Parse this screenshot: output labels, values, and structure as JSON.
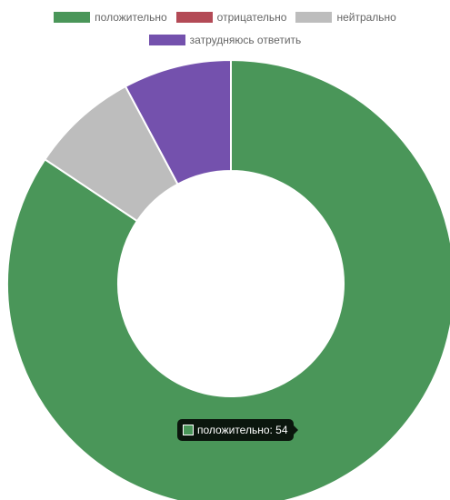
{
  "chart_data": {
    "type": "doughnut",
    "title": "",
    "legend_position": "top",
    "categories": [
      "положительно",
      "отрицательно",
      "нейтрально",
      "затрудняюсь ответить"
    ],
    "values": [
      54,
      0,
      5,
      5
    ],
    "colors": [
      "#4a9659",
      "#b34a56",
      "#bdbdbd",
      "#7451ad"
    ],
    "legend": [
      {
        "label": "положительно",
        "color": "#4a9659"
      },
      {
        "label": "отрицательно",
        "color": "#b34a56"
      },
      {
        "label": "нейтрально",
        "color": "#bdbdbd"
      },
      {
        "label": "затрудняюсь ответить",
        "color": "#7451ad"
      }
    ],
    "tooltip": {
      "text": "положительно: 54",
      "color": "#4a9659"
    }
  }
}
